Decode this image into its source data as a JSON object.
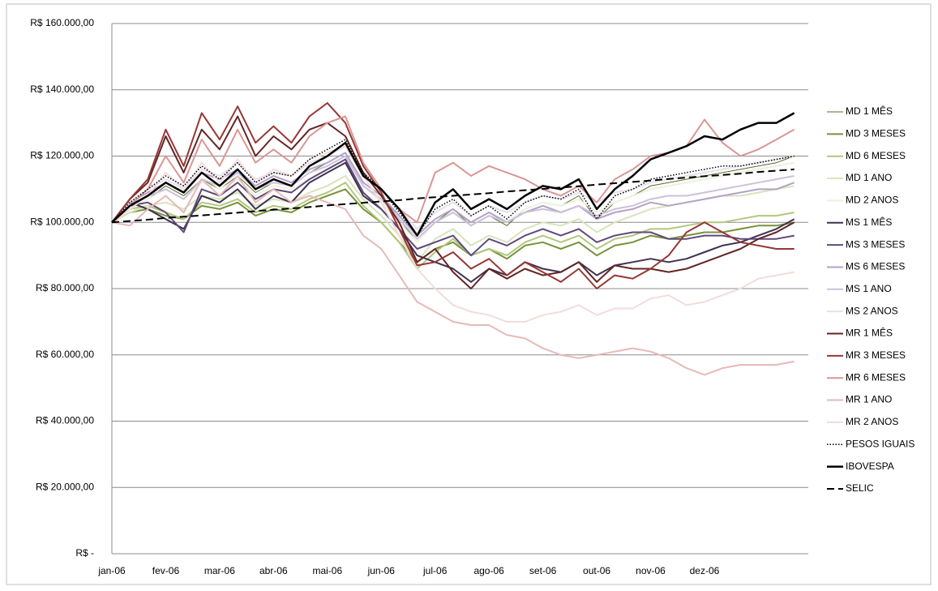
{
  "chart_data": {
    "type": "line",
    "categories": [
      "jan-06",
      null,
      null,
      "fev-06",
      null,
      null,
      "mar-06",
      null,
      null,
      "abr-06",
      null,
      null,
      "mai-06",
      null,
      null,
      "jun-06",
      null,
      null,
      "jul-06",
      null,
      null,
      "ago-06",
      null,
      null,
      "set-06",
      null,
      null,
      "out-06",
      null,
      null,
      "nov-06",
      null,
      null,
      "dez-06",
      null,
      null,
      null,
      null,
      null
    ],
    "ylim": [
      0,
      160000
    ],
    "yticks": [
      {
        "value": 0,
        "label": "R$ -"
      },
      {
        "value": 20000,
        "label": "R$ 20.000,00"
      },
      {
        "value": 40000,
        "label": "R$ 40.000,00"
      },
      {
        "value": 60000,
        "label": "R$ 60.000,00"
      },
      {
        "value": 80000,
        "label": "R$ 80.000,00"
      },
      {
        "value": 100000,
        "label": "R$ 100.000,00"
      },
      {
        "value": 120000,
        "label": "R$ 120.000,00"
      },
      {
        "value": 140000,
        "label": "R$ 140.000,00"
      },
      {
        "value": 160000,
        "label": "R$ 160.000,00"
      }
    ],
    "grid": true,
    "legend": "right",
    "series": [
      {
        "name": "MD 1 MÊS",
        "color": "#5a6b2a",
        "width": 1,
        "dash": "solid",
        "values": [
          100000,
          104000,
          107000,
          111000,
          108000,
          113000,
          110000,
          114000,
          109000,
          112000,
          111000,
          115000,
          118000,
          121000,
          112000,
          108000,
          101000,
          94000,
          100000,
          104000,
          99000,
          102000,
          99000,
          104000,
          106000,
          105000,
          108000,
          101000,
          106000,
          108000,
          111000,
          112000,
          113000,
          114000,
          115000,
          116000,
          117000,
          118000,
          120000
        ]
      },
      {
        "name": "MD 3 MESES",
        "color": "#77933c",
        "width": 2,
        "dash": "solid",
        "values": [
          100000,
          103000,
          104000,
          102000,
          101000,
          105000,
          104000,
          106000,
          102000,
          104000,
          103000,
          106000,
          108000,
          110000,
          104000,
          100000,
          94000,
          88000,
          92000,
          94000,
          90000,
          92000,
          89000,
          93000,
          94000,
          92000,
          94000,
          90000,
          93000,
          94000,
          96000,
          95000,
          96000,
          97000,
          97000,
          98000,
          99000,
          99000,
          100000
        ]
      },
      {
        "name": "MD 6 MESES",
        "color": "#b3c77e",
        "width": 2,
        "dash": "solid",
        "values": [
          100000,
          104000,
          105000,
          103000,
          101000,
          106000,
          105000,
          107000,
          103000,
          105000,
          104000,
          107000,
          109000,
          112000,
          105000,
          100000,
          94000,
          86000,
          91000,
          95000,
          90000,
          92000,
          90000,
          94000,
          96000,
          94000,
          96000,
          92000,
          95000,
          96000,
          98000,
          98000,
          99000,
          100000,
          100000,
          101000,
          102000,
          102000,
          103000
        ]
      },
      {
        "name": "MD 1 ANO",
        "color": "#d7e4bd",
        "width": 2,
        "dash": "solid",
        "values": [
          100000,
          103000,
          105000,
          106000,
          104000,
          108000,
          107000,
          109000,
          105000,
          107000,
          106000,
          109000,
          111000,
          114000,
          107000,
          102000,
          96000,
          88000,
          95000,
          98000,
          93000,
          96000,
          94000,
          98000,
          100000,
          99000,
          101000,
          97000,
          100000,
          102000,
          104000,
          105000,
          106000,
          107000,
          108000,
          108000,
          109000,
          110000,
          111000
        ]
      },
      {
        "name": "MD 2 ANOS",
        "color": "#ebf1de",
        "width": 2,
        "dash": "solid",
        "values": [
          100000,
          104000,
          107000,
          110000,
          107000,
          112000,
          110000,
          113000,
          108000,
          111000,
          110000,
          113000,
          116000,
          119000,
          111000,
          106000,
          100000,
          94000,
          100000,
          103000,
          99000,
          102000,
          100000,
          104000,
          106000,
          105000,
          107000,
          103000,
          106000,
          108000,
          110000,
          111000,
          112000,
          113000,
          114000,
          115000,
          116000,
          117000,
          118000
        ]
      },
      {
        "name": "MS 1 MÊS",
        "color": "#3f3151",
        "width": 2,
        "dash": "solid",
        "values": [
          100000,
          106000,
          104000,
          101000,
          98000,
          108000,
          106000,
          110000,
          104000,
          108000,
          106000,
          112000,
          115000,
          118000,
          108000,
          104000,
          98000,
          90000,
          88000,
          86000,
          82000,
          86000,
          84000,
          88000,
          86000,
          85000,
          88000,
          84000,
          87000,
          88000,
          89000,
          88000,
          89000,
          91000,
          93000,
          94000,
          96000,
          98000,
          101000
        ]
      },
      {
        "name": "MS 3 MESES",
        "color": "#60497a",
        "width": 2,
        "dash": "solid",
        "values": [
          100000,
          105000,
          106000,
          103000,
          97000,
          110000,
          108000,
          112000,
          107000,
          110000,
          109000,
          113000,
          116000,
          119000,
          109000,
          104000,
          98000,
          92000,
          94000,
          96000,
          90000,
          95000,
          93000,
          96000,
          98000,
          96000,
          98000,
          94000,
          96000,
          97000,
          97000,
          95000,
          95000,
          96000,
          96000,
          95000,
          95000,
          95000,
          96000
        ]
      },
      {
        "name": "MS 6 MESES",
        "color": "#b3a2c7",
        "width": 2,
        "dash": "solid",
        "values": [
          100000,
          106000,
          109000,
          112000,
          109000,
          115000,
          113000,
          116000,
          111000,
          114000,
          112000,
          116000,
          118000,
          121000,
          112000,
          108000,
          102000,
          96000,
          101000,
          104000,
          100000,
          103000,
          100000,
          103000,
          105000,
          103000,
          105000,
          101000,
          103000,
          104000,
          106000,
          105000,
          106000,
          107000,
          108000,
          109000,
          110000,
          110000,
          112000
        ]
      },
      {
        "name": "MS 1 ANO",
        "color": "#ccc1da",
        "width": 2,
        "dash": "solid",
        "values": [
          100000,
          105000,
          108000,
          110000,
          107000,
          113000,
          111000,
          115000,
          110000,
          112000,
          111000,
          115000,
          117000,
          120000,
          111000,
          107000,
          101000,
          95000,
          100000,
          103000,
          99000,
          102000,
          100000,
          103000,
          104000,
          103000,
          105000,
          102000,
          104000,
          105000,
          107000,
          108000,
          108000,
          109000,
          110000,
          111000,
          112000,
          113000,
          114000
        ]
      },
      {
        "name": "MS 2 ANOS",
        "color": "#e5e0ec",
        "width": 2,
        "dash": "solid",
        "values": [
          100000,
          106000,
          110000,
          113000,
          110000,
          116000,
          114000,
          118000,
          113000,
          115000,
          114000,
          118000,
          120000,
          123000,
          114000,
          110000,
          104000,
          98000,
          103000,
          106000,
          102000,
          105000,
          103000,
          106000,
          108000,
          107000,
          109000,
          106000,
          109000,
          110000,
          112000,
          113000,
          114000,
          115000,
          116000,
          117000,
          118000,
          119000,
          120000
        ]
      },
      {
        "name": "MR 1 MÊS",
        "color": "#632523",
        "width": 2,
        "dash": "solid",
        "values": [
          100000,
          107000,
          112000,
          126000,
          115000,
          128000,
          122000,
          132000,
          120000,
          126000,
          122000,
          128000,
          130000,
          126000,
          115000,
          108000,
          100000,
          88000,
          92000,
          85000,
          80000,
          86000,
          83000,
          86000,
          84000,
          85000,
          88000,
          82000,
          87000,
          86000,
          86000,
          85000,
          86000,
          88000,
          90000,
          92000,
          95000,
          97000,
          100000
        ]
      },
      {
        "name": "MR 3 MESES",
        "color": "#953735",
        "width": 2,
        "dash": "solid",
        "values": [
          100000,
          107000,
          113000,
          128000,
          117000,
          133000,
          125000,
          135000,
          124000,
          129000,
          124000,
          132000,
          136000,
          130000,
          117000,
          109000,
          98000,
          87000,
          88000,
          91000,
          86000,
          89000,
          84000,
          88000,
          85000,
          82000,
          86000,
          80000,
          84000,
          83000,
          86000,
          90000,
          97000,
          100000,
          97000,
          94000,
          93000,
          92000,
          92000
        ]
      },
      {
        "name": "MR 6 MESES",
        "color": "#d99694",
        "width": 2,
        "dash": "solid",
        "values": [
          100000,
          105000,
          110000,
          120000,
          112000,
          125000,
          117000,
          128000,
          118000,
          122000,
          118000,
          126000,
          130000,
          132000,
          118000,
          110000,
          104000,
          100000,
          115000,
          118000,
          114000,
          117000,
          115000,
          113000,
          110000,
          108000,
          111000,
          106000,
          113000,
          116000,
          120000,
          121000,
          123000,
          131000,
          124000,
          120000,
          122000,
          125000,
          128000
        ]
      },
      {
        "name": "MR 1 ANO",
        "color": "#e6b9b8",
        "width": 2,
        "dash": "solid",
        "values": [
          100000,
          99000,
          104000,
          108000,
          103000,
          113000,
          108000,
          114000,
          106000,
          110000,
          106000,
          108000,
          106000,
          104000,
          96000,
          92000,
          84000,
          76000,
          73000,
          70000,
          69000,
          69000,
          66000,
          65000,
          62000,
          60000,
          59000,
          60000,
          61000,
          62000,
          61000,
          59000,
          56000,
          54000,
          56000,
          57000,
          57000,
          57000,
          58000
        ]
      },
      {
        "name": "MR 2 ANOS",
        "color": "#f2dcdb",
        "width": 2,
        "dash": "solid",
        "values": [
          100000,
          104000,
          108000,
          115000,
          110000,
          118000,
          112000,
          119000,
          112000,
          116000,
          114000,
          119000,
          121000,
          123000,
          114000,
          106000,
          96000,
          86000,
          80000,
          75000,
          73000,
          72000,
          70000,
          70000,
          72000,
          73000,
          75000,
          72000,
          74000,
          74000,
          77000,
          78000,
          75000,
          76000,
          78000,
          80000,
          83000,
          84000,
          85000
        ]
      },
      {
        "name": "PESOS IGUAIS",
        "color": "#000000",
        "width": 1.5,
        "dash": "dotted",
        "values": [
          100000,
          106000,
          110000,
          114000,
          111000,
          117000,
          113000,
          118000,
          112000,
          115000,
          114000,
          119000,
          122000,
          125000,
          115000,
          110000,
          103000,
          96000,
          104000,
          107000,
          102000,
          105000,
          101000,
          106000,
          108000,
          107000,
          110000,
          101000,
          108000,
          110000,
          113000,
          114000,
          115000,
          116000,
          117000,
          117000,
          118000,
          119000,
          120000
        ]
      },
      {
        "name": "IBOVESPA",
        "color": "#000000",
        "width": 2.5,
        "dash": "solid",
        "values": [
          100000,
          105000,
          108000,
          112000,
          109000,
          115000,
          111000,
          116000,
          110000,
          113000,
          111000,
          117000,
          120000,
          124000,
          114000,
          110000,
          104000,
          96000,
          106000,
          110000,
          104000,
          107000,
          104000,
          108000,
          111000,
          110000,
          113000,
          104000,
          110000,
          114000,
          119000,
          121000,
          123000,
          126000,
          125000,
          128000,
          130000,
          130000,
          133000
        ]
      },
      {
        "name": "SELIC",
        "color": "#000000",
        "width": 2,
        "dash": "dashed",
        "values": [
          100000,
          100400,
          100800,
          101300,
          101700,
          102100,
          102500,
          102900,
          103400,
          103800,
          104200,
          104600,
          105100,
          105500,
          105900,
          106300,
          106700,
          107200,
          107600,
          108000,
          108400,
          108800,
          109300,
          109700,
          110100,
          110500,
          110900,
          111400,
          111800,
          112200,
          112600,
          113100,
          113500,
          113900,
          114300,
          114700,
          115200,
          115600,
          116000
        ]
      }
    ]
  }
}
